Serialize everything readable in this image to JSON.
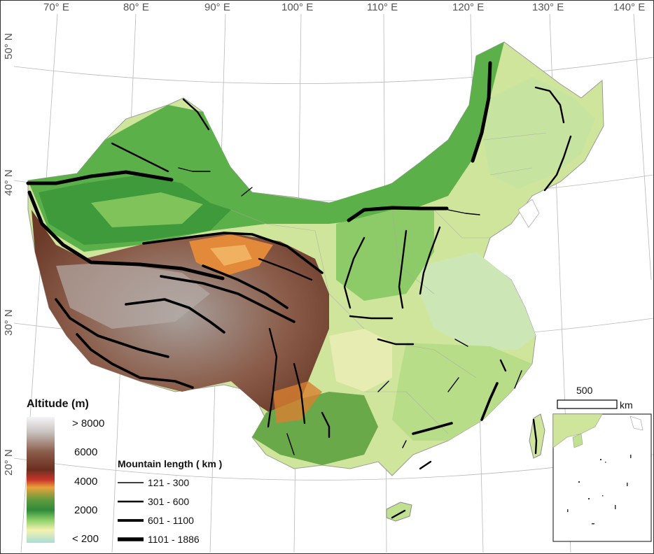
{
  "longitude_labels": [
    "70° E",
    "80° E",
    "90° E",
    "100° E",
    "110° E",
    "120° E",
    "130° E",
    "140° E"
  ],
  "latitude_labels": [
    "50° N",
    "40° N",
    "30° N",
    "20° N"
  ],
  "altitude_legend": {
    "title": "Altitude (m)",
    "labels": [
      "> 8000",
      "6000",
      "4000",
      "2000",
      "< 200"
    ],
    "colors": [
      "#f4f4f6",
      "#c9c3c0",
      "#8a5c49",
      "#6b2e1f",
      "#c9352a",
      "#e8a23a",
      "#5f9b3e",
      "#2f8a3a",
      "#8fd16a",
      "#f4f2b0",
      "#a8ddd6"
    ]
  },
  "mountain_legend": {
    "title": "Mountain length ( km )",
    "classes": [
      "121 - 300",
      "301 - 600",
      "601 - 1100",
      "1101 - 1886"
    ]
  },
  "scale_bar": {
    "value": "500",
    "unit": "km"
  }
}
